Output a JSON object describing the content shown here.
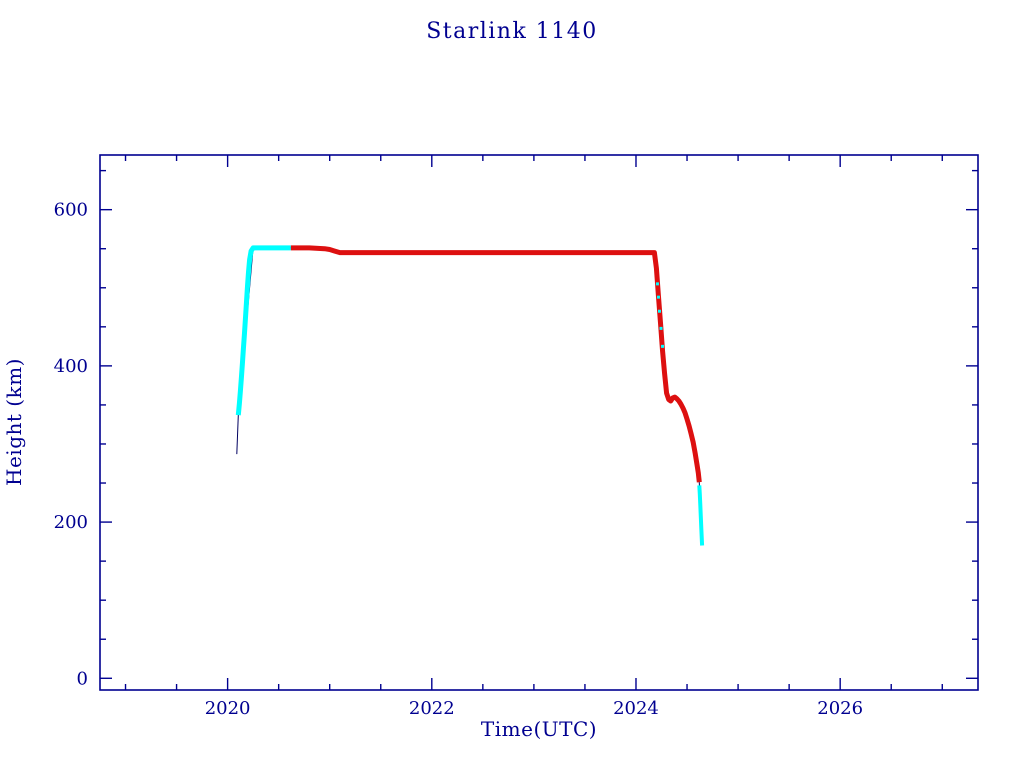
{
  "chart_data": {
    "type": "scatter",
    "title": "Starlink 1140",
    "xlabel": "Time(UTC)",
    "ylabel": "Height (km)",
    "x_axis": {
      "min": 2018.75,
      "max": 2027.35,
      "major_ticks": [
        2020,
        2022,
        2024,
        2026
      ],
      "minor_step": 0.5
    },
    "y_axis": {
      "min": -15,
      "max": 670,
      "major_ticks": [
        0,
        200,
        400,
        600
      ],
      "minor_step": 50
    },
    "grid": false,
    "legend_position": "none",
    "colors": {
      "axis": "#000090",
      "text": "#000090",
      "cyan_marker": "#00ffff",
      "red_marker": "#dd1010",
      "track_line": "#000060"
    },
    "series": [
      {
        "name": "orbit-track-line",
        "label": "orbit height track (connecting line)",
        "color": "#000060",
        "style": "line",
        "width": 1,
        "points": [
          [
            2020.09,
            287
          ],
          [
            2020.105,
            337
          ],
          [
            2020.25,
            551
          ],
          [
            2020.62,
            551
          ],
          [
            2021.0,
            549
          ],
          [
            2021.1,
            545
          ],
          [
            2024.18,
            545
          ],
          [
            2024.3,
            362
          ],
          [
            2024.34,
            356
          ],
          [
            2024.38,
            360
          ],
          [
            2024.44,
            351
          ],
          [
            2024.5,
            331
          ],
          [
            2024.56,
            305
          ],
          [
            2024.61,
            265
          ],
          [
            2024.62,
            250
          ],
          [
            2024.63,
            222
          ],
          [
            2024.64,
            190
          ],
          [
            2024.648,
            170
          ]
        ]
      },
      {
        "name": "ascent-and-early-ops-cyan",
        "label": "orbit raise and early operations (cyan markers)",
        "color": "#00ffff",
        "style": "thick",
        "width": 5,
        "points": [
          [
            2020.105,
            337
          ],
          [
            2020.115,
            352
          ],
          [
            2020.125,
            368
          ],
          [
            2020.135,
            385
          ],
          [
            2020.145,
            403
          ],
          [
            2020.155,
            422
          ],
          [
            2020.165,
            442
          ],
          [
            2020.175,
            462
          ],
          [
            2020.185,
            482
          ],
          [
            2020.195,
            502
          ],
          [
            2020.205,
            520
          ],
          [
            2020.215,
            536
          ],
          [
            2020.23,
            547
          ],
          [
            2020.25,
            551
          ],
          [
            2020.35,
            551
          ],
          [
            2020.45,
            551
          ],
          [
            2020.55,
            551
          ],
          [
            2020.62,
            551
          ]
        ]
      },
      {
        "name": "operational-and-deorbit-red",
        "label": "station keeping at ~545 km then deorbit (red markers)",
        "color": "#dd1010",
        "style": "thick",
        "width": 5,
        "points": [
          [
            2020.62,
            551
          ],
          [
            2020.8,
            551
          ],
          [
            2020.95,
            550
          ],
          [
            2021.0,
            549
          ],
          [
            2021.05,
            547
          ],
          [
            2021.1,
            545
          ],
          [
            2021.4,
            545
          ],
          [
            2021.8,
            545
          ],
          [
            2022.2,
            545
          ],
          [
            2022.6,
            545
          ],
          [
            2023.0,
            545
          ],
          [
            2023.4,
            545
          ],
          [
            2023.8,
            545
          ],
          [
            2024.1,
            545
          ],
          [
            2024.18,
            545
          ],
          [
            2024.2,
            525
          ],
          [
            2024.22,
            490
          ],
          [
            2024.24,
            455
          ],
          [
            2024.26,
            420
          ],
          [
            2024.28,
            390
          ],
          [
            2024.3,
            365
          ],
          [
            2024.32,
            357
          ],
          [
            2024.34,
            355
          ],
          [
            2024.36,
            359
          ],
          [
            2024.38,
            360
          ],
          [
            2024.4,
            358
          ],
          [
            2024.42,
            355
          ],
          [
            2024.44,
            351
          ],
          [
            2024.46,
            346
          ],
          [
            2024.48,
            340
          ],
          [
            2024.5,
            332
          ],
          [
            2024.52,
            323
          ],
          [
            2024.54,
            313
          ],
          [
            2024.56,
            302
          ],
          [
            2024.58,
            288
          ],
          [
            2024.6,
            272
          ],
          [
            2024.61,
            263
          ],
          [
            2024.62,
            251
          ]
        ]
      },
      {
        "name": "deorbit-cyan-specks",
        "label": "scattered cyan points during rapid descent",
        "color": "#00ffff",
        "style": "markers",
        "width": 3,
        "points": [
          [
            2024.21,
            505
          ],
          [
            2024.22,
            488
          ],
          [
            2024.23,
            470
          ],
          [
            2024.245,
            448
          ],
          [
            2024.26,
            425
          ]
        ]
      },
      {
        "name": "final-decay-cyan",
        "label": "final decay to reentry (cyan markers)",
        "color": "#00ffff",
        "style": "thick",
        "width": 4,
        "points": [
          [
            2024.62,
            247
          ],
          [
            2024.625,
            236
          ],
          [
            2024.63,
            222
          ],
          [
            2024.635,
            207
          ],
          [
            2024.64,
            192
          ],
          [
            2024.645,
            178
          ],
          [
            2024.648,
            170
          ]
        ]
      }
    ]
  }
}
